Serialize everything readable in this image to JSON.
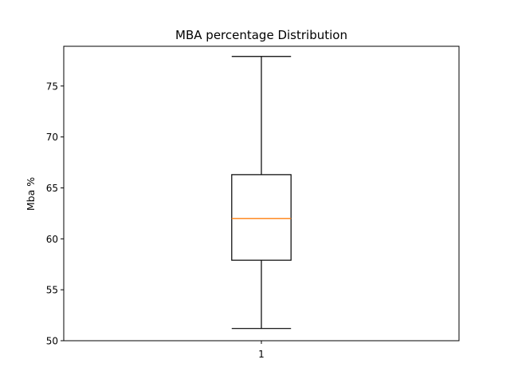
{
  "chart_data": {
    "type": "box",
    "title": "MBA percentage Distribution",
    "xlabel": "",
    "ylabel": "Mba %",
    "categories": [
      "1"
    ],
    "ylim": [
      50,
      78.9
    ],
    "yticks": [
      50,
      55,
      60,
      65,
      70,
      75
    ],
    "boxes": [
      {
        "category": "1",
        "whisker_low": 51.2,
        "q1": 57.9,
        "median": 62.0,
        "q3": 66.3,
        "whisker_high": 77.9
      }
    ],
    "colors": {
      "box": "#000000",
      "median": "#ff7f0e",
      "axes": "#000000"
    },
    "grid": false
  }
}
